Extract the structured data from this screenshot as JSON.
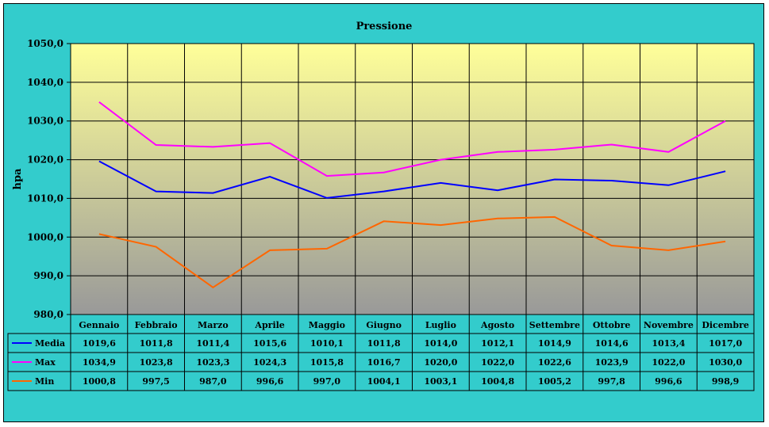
{
  "chart_data": {
    "type": "line",
    "title": "Pressione",
    "ylabel": "hpa",
    "xlabel": "",
    "ylim": [
      980,
      1050
    ],
    "y_ticks": [
      "980,0",
      "990,0",
      "1000,0",
      "1010,0",
      "1020,0",
      "1030,0",
      "1040,0",
      "1050,0"
    ],
    "categories": [
      "Gennaio",
      "Febbraio",
      "Marzo",
      "Aprile",
      "Maggio",
      "Giugno",
      "Luglio",
      "Agosto",
      "Settembre",
      "Ottobre",
      "Novembre",
      "Dicembre"
    ],
    "grid": true,
    "legend": "data-table-below",
    "series": [
      {
        "name": "Media",
        "color": "#0000ff",
        "values": [
          1019.6,
          1011.8,
          1011.4,
          1015.6,
          1010.1,
          1011.8,
          1014.0,
          1012.1,
          1014.9,
          1014.6,
          1013.4,
          1017.0
        ],
        "labels": [
          "1019,6",
          "1011,8",
          "1011,4",
          "1015,6",
          "1010,1",
          "1011,8",
          "1014,0",
          "1012,1",
          "1014,9",
          "1014,6",
          "1013,4",
          "1017,0"
        ]
      },
      {
        "name": "Max",
        "color": "#ff00ff",
        "values": [
          1034.9,
          1023.8,
          1023.3,
          1024.3,
          1015.8,
          1016.7,
          1020.0,
          1022.0,
          1022.6,
          1023.9,
          1022.0,
          1030.0
        ],
        "labels": [
          "1034,9",
          "1023,8",
          "1023,3",
          "1024,3",
          "1015,8",
          "1016,7",
          "1020,0",
          "1022,0",
          "1022,6",
          "1023,9",
          "1022,0",
          "1030,0"
        ]
      },
      {
        "name": "Min",
        "color": "#ff6600",
        "values": [
          1000.8,
          997.5,
          987.0,
          996.6,
          997.0,
          1004.1,
          1003.1,
          1004.8,
          1005.2,
          997.8,
          996.6,
          998.9
        ],
        "labels": [
          "1000,8",
          "997,5",
          "987,0",
          "996,6",
          "997,0",
          "1004,1",
          "1003,1",
          "1004,8",
          "1005,2",
          "997,8",
          "996,6",
          "998,9"
        ]
      }
    ]
  },
  "colors": {
    "frame_bg": "#33cccc",
    "plot_gradient_top": "#ffff99",
    "plot_gradient_bottom": "#999999"
  }
}
